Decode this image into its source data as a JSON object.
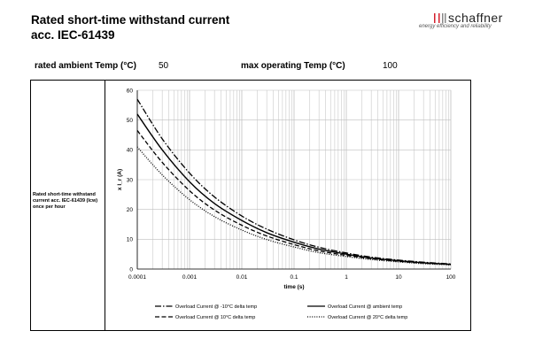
{
  "header": {
    "title_line1": "Rated short-time withstand current",
    "title_line2": "acc. IEC-61439",
    "brand": "schaffner",
    "tagline": "energy efficiency and reliability"
  },
  "params": {
    "ambient_label": "rated ambient Temp (°C)",
    "ambient_value": "50",
    "max_label": "max operating Temp (°C)",
    "max_value": "100"
  },
  "row_label": "Rated short-time withstand current acc. IEC-61439 (Icw) once per hour",
  "colors": {
    "line": "#000000",
    "grid": "#bfbfbf",
    "brand_red": "#d4202c"
  },
  "chart_data": {
    "type": "line",
    "xlabel": "time (s)",
    "ylabel": "x I_r (A)",
    "xscale": "log",
    "xlim": [
      0.0001,
      100
    ],
    "ylim": [
      0,
      60
    ],
    "xticks": [
      "0.0001",
      "0.001",
      "0.01",
      "0.1",
      "1",
      "10",
      "100"
    ],
    "yticks": [
      "0",
      "10",
      "20",
      "30",
      "40",
      "50",
      "60"
    ],
    "legend_position": "bottom",
    "series": [
      {
        "name": "Overload Current @ -10°C delta temp",
        "style": "dashdot",
        "x": [
          0.0001,
          0.0003,
          0.001,
          0.003,
          0.01,
          0.03,
          0.1,
          0.3,
          1,
          3,
          10,
          30,
          100
        ],
        "y": [
          57,
          43.7,
          32.2,
          24.2,
          17.8,
          13.4,
          9.8,
          7.3,
          5.4,
          4.0,
          3.0,
          2.3,
          1.7
        ]
      },
      {
        "name": "Overload Current @ ambient temp",
        "style": "solid",
        "x": [
          0.0001,
          0.0003,
          0.001,
          0.003,
          0.01,
          0.03,
          0.1,
          0.3,
          1,
          3,
          10,
          30,
          100
        ],
        "y": [
          52,
          40.0,
          29.3,
          22.0,
          16.3,
          12.2,
          9.0,
          6.7,
          5.0,
          3.7,
          2.8,
          2.1,
          1.6
        ]
      },
      {
        "name": "Overload Current @ 10°C delta temp",
        "style": "dashed",
        "x": [
          0.0001,
          0.0003,
          0.001,
          0.003,
          0.01,
          0.03,
          0.1,
          0.3,
          1,
          3,
          10,
          30,
          100
        ],
        "y": [
          46.5,
          35.8,
          26.3,
          19.8,
          14.7,
          11.1,
          8.2,
          6.1,
          4.6,
          3.5,
          2.6,
          2.0,
          1.5
        ]
      },
      {
        "name": "Overload Current @ 20°C delta temp",
        "style": "dotted",
        "x": [
          0.0001,
          0.0003,
          0.001,
          0.003,
          0.01,
          0.03,
          0.1,
          0.3,
          1,
          3,
          10,
          30,
          100
        ],
        "y": [
          41,
          31.6,
          23.3,
          17.6,
          13.1,
          9.9,
          7.4,
          5.5,
          4.2,
          3.2,
          2.4,
          1.8,
          1.4
        ]
      }
    ]
  }
}
